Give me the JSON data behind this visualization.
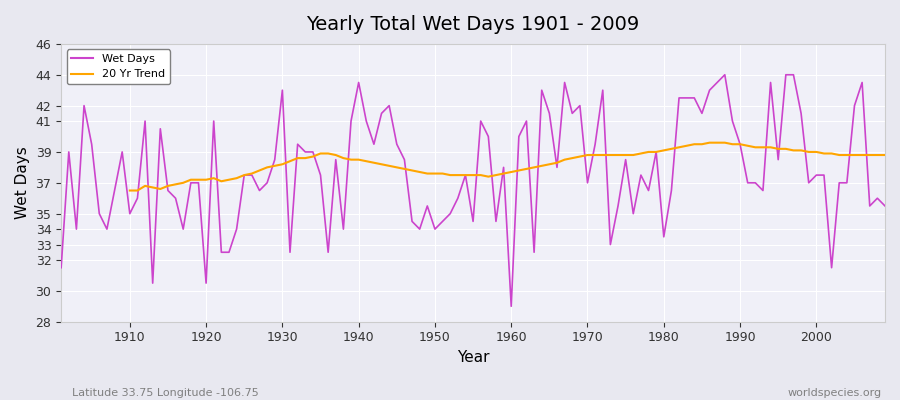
{
  "title": "Yearly Total Wet Days 1901 - 2009",
  "xlabel": "Year",
  "ylabel": "Wet Days",
  "subtitle": "Latitude 33.75 Longitude -106.75",
  "watermark": "worldspecies.org",
  "line_color": "#CC44CC",
  "trend_color": "#FFA500",
  "bg_color": "#E8E8F0",
  "plot_bg_color": "#F0F0F8",
  "ylim": [
    28,
    46
  ],
  "years": [
    1901,
    1902,
    1903,
    1904,
    1905,
    1906,
    1907,
    1908,
    1909,
    1910,
    1911,
    1912,
    1913,
    1914,
    1915,
    1916,
    1917,
    1918,
    1919,
    1920,
    1921,
    1922,
    1923,
    1924,
    1925,
    1926,
    1927,
    1928,
    1929,
    1930,
    1931,
    1932,
    1933,
    1934,
    1935,
    1936,
    1937,
    1938,
    1939,
    1940,
    1941,
    1942,
    1943,
    1944,
    1945,
    1946,
    1947,
    1948,
    1949,
    1950,
    1951,
    1952,
    1953,
    1954,
    1955,
    1956,
    1957,
    1958,
    1959,
    1960,
    1961,
    1962,
    1963,
    1964,
    1965,
    1966,
    1967,
    1968,
    1969,
    1970,
    1971,
    1972,
    1973,
    1974,
    1975,
    1976,
    1977,
    1978,
    1979,
    1980,
    1981,
    1982,
    1983,
    1984,
    1985,
    1986,
    1987,
    1988,
    1989,
    1990,
    1991,
    1992,
    1993,
    1994,
    1995,
    1996,
    1997,
    1998,
    1999,
    2000,
    2001,
    2002,
    2003,
    2004,
    2005,
    2006,
    2007,
    2008,
    2009
  ],
  "wet_days": [
    31.5,
    39.0,
    34.0,
    42.0,
    39.5,
    35.0,
    34.0,
    36.5,
    39.0,
    35.0,
    36.0,
    41.0,
    30.5,
    40.5,
    36.5,
    36.0,
    34.0,
    37.0,
    37.0,
    30.5,
    41.0,
    32.5,
    32.5,
    34.0,
    37.5,
    37.5,
    36.5,
    37.0,
    38.5,
    43.0,
    32.5,
    39.5,
    39.0,
    39.0,
    37.5,
    32.5,
    38.5,
    34.0,
    41.0,
    43.5,
    41.0,
    39.5,
    41.5,
    42.0,
    39.5,
    38.5,
    34.5,
    34.0,
    35.5,
    34.0,
    34.5,
    35.0,
    36.0,
    37.5,
    34.5,
    41.0,
    40.0,
    34.5,
    38.0,
    29.0,
    40.0,
    41.0,
    32.5,
    43.0,
    41.5,
    38.0,
    43.5,
    41.5,
    42.0,
    37.0,
    39.5,
    43.0,
    33.0,
    35.5,
    38.5,
    35.0,
    37.5,
    36.5,
    39.0,
    33.5,
    36.5,
    42.5,
    42.5,
    42.5,
    41.5,
    43.0,
    43.5,
    44.0,
    41.0,
    39.5,
    37.0,
    37.0,
    36.5,
    43.5,
    38.5,
    44.0,
    44.0,
    41.5,
    37.0,
    37.5,
    37.5,
    31.5,
    37.0,
    37.0,
    42.0,
    43.5,
    35.5,
    36.0,
    35.5
  ],
  "trend_years": [
    1910,
    1911,
    1912,
    1913,
    1914,
    1915,
    1916,
    1917,
    1918,
    1919,
    1920,
    1921,
    1922,
    1923,
    1924,
    1925,
    1926,
    1927,
    1928,
    1929,
    1930,
    1931,
    1932,
    1933,
    1934,
    1935,
    1936,
    1937,
    1938,
    1939,
    1940,
    1941,
    1942,
    1943,
    1944,
    1945,
    1946,
    1947,
    1948,
    1949,
    1950,
    1951,
    1952,
    1953,
    1954,
    1955,
    1956,
    1957,
    1958,
    1959,
    1960,
    1961,
    1962,
    1963,
    1964,
    1965,
    1966,
    1967,
    1968,
    1969,
    1970,
    1971,
    1972,
    1973,
    1974,
    1975,
    1976,
    1977,
    1978,
    1979,
    1980,
    1981,
    1982,
    1983,
    1984,
    1985,
    1986,
    1987,
    1988,
    1989,
    1990,
    1991,
    1992,
    1993,
    1994,
    1995,
    1996,
    1997,
    1998,
    1999,
    2000,
    2001,
    2002,
    2003,
    2004,
    2005,
    2006,
    2007,
    2008,
    2009
  ],
  "trend_values": [
    36.5,
    36.5,
    36.8,
    36.7,
    36.6,
    36.8,
    36.9,
    37.0,
    37.2,
    37.2,
    37.2,
    37.3,
    37.1,
    37.2,
    37.3,
    37.5,
    37.6,
    37.8,
    38.0,
    38.1,
    38.2,
    38.4,
    38.6,
    38.6,
    38.7,
    38.9,
    38.9,
    38.8,
    38.6,
    38.5,
    38.5,
    38.4,
    38.3,
    38.2,
    38.1,
    38.0,
    37.9,
    37.8,
    37.7,
    37.6,
    37.6,
    37.6,
    37.5,
    37.5,
    37.5,
    37.5,
    37.5,
    37.4,
    37.5,
    37.6,
    37.7,
    37.8,
    37.9,
    38.0,
    38.1,
    38.2,
    38.3,
    38.5,
    38.6,
    38.7,
    38.8,
    38.8,
    38.8,
    38.8,
    38.8,
    38.8,
    38.8,
    38.9,
    39.0,
    39.0,
    39.1,
    39.2,
    39.3,
    39.4,
    39.5,
    39.5,
    39.6,
    39.6,
    39.6,
    39.5,
    39.5,
    39.4,
    39.3,
    39.3,
    39.3,
    39.2,
    39.2,
    39.1,
    39.1,
    39.0,
    39.0,
    38.9,
    38.9,
    38.8,
    38.8,
    38.8,
    38.8,
    38.8,
    38.8,
    38.8
  ],
  "yticks": [
    28,
    30,
    32,
    33,
    34,
    35,
    37,
    39,
    41,
    42,
    44,
    46
  ],
  "xticks": [
    1910,
    1920,
    1930,
    1940,
    1950,
    1960,
    1970,
    1980,
    1990,
    2000
  ]
}
